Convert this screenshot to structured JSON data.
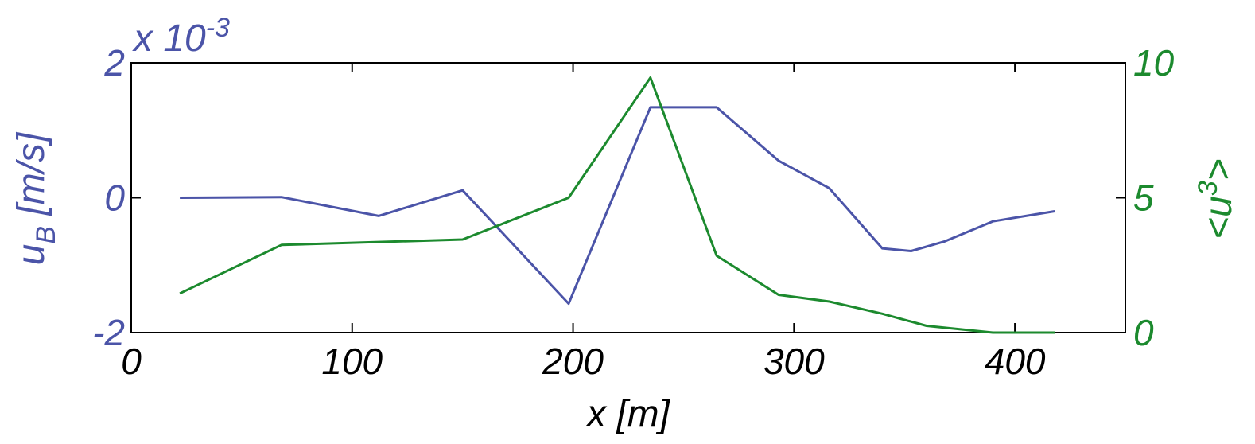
{
  "chart_data": {
    "type": "line",
    "xlabel": "x [m]",
    "xlim": [
      0,
      450
    ],
    "x_ticks": [
      "0",
      "100",
      "200",
      "300",
      "400"
    ],
    "x_tick_values": [
      0,
      100,
      200,
      300,
      400
    ],
    "grid": false,
    "left_axis": {
      "label_main": "u",
      "label_sub": "B",
      "label_rest": " [m/s]",
      "multiplier": "x 10",
      "multiplier_exp": "-3",
      "ylim": [
        -0.002,
        0.002
      ],
      "ticks": [
        "-2",
        "0",
        "2"
      ],
      "tick_values": [
        -0.002,
        0,
        0.002
      ],
      "color": "#4b54a8"
    },
    "right_axis": {
      "label_pre": "<u",
      "label_sup": "3",
      "label_post": ">",
      "ylim": [
        0,
        10
      ],
      "ticks": [
        "0",
        "5",
        "10"
      ],
      "tick_values": [
        0,
        5,
        10
      ],
      "color": "#1c8a2e"
    },
    "series": [
      {
        "axis": "left",
        "color": "#4b54a8",
        "x": [
          22,
          68,
          112,
          150,
          198,
          235,
          265,
          293,
          316,
          340,
          353,
          368,
          390,
          418
        ],
        "y": [
          0,
          1e-05,
          -0.00027,
          0.00011,
          -0.00157,
          0.00134,
          0.00134,
          0.00055,
          0.00014,
          -0.00075,
          -0.00079,
          -0.00065,
          -0.00035,
          -0.0002
        ]
      },
      {
        "axis": "right",
        "color": "#1c8a2e",
        "x": [
          22,
          68,
          150,
          198,
          235,
          265,
          293,
          316,
          340,
          360,
          390,
          418
        ],
        "y": [
          1.45,
          3.25,
          3.45,
          5.0,
          9.45,
          2.85,
          1.4,
          1.15,
          0.7,
          0.25,
          0.0,
          0.0
        ]
      }
    ]
  }
}
